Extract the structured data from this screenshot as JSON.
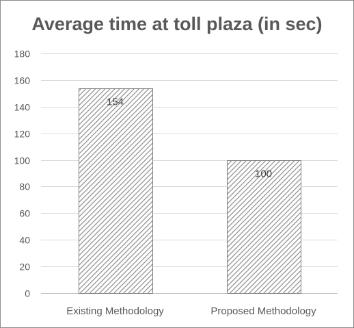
{
  "chart_data": {
    "type": "bar",
    "title": "Average time at toll plaza (in sec)",
    "categories": [
      "Existing Methodology",
      "Proposed Methodology"
    ],
    "values": [
      154,
      100
    ],
    "data_labels": [
      "154",
      "100"
    ],
    "xlabel": "",
    "ylabel": "",
    "ylim": [
      0,
      180
    ],
    "yticks": [
      0,
      20,
      40,
      60,
      80,
      100,
      120,
      140,
      160,
      180
    ],
    "grid": true,
    "legend": "none",
    "bar_fill": "diagonal-hatch",
    "colors": {
      "bar_stroke": "#7f7f7f",
      "hatch": "#8c8c8c",
      "grid": "#d9d9d9",
      "text": "#595959"
    }
  }
}
